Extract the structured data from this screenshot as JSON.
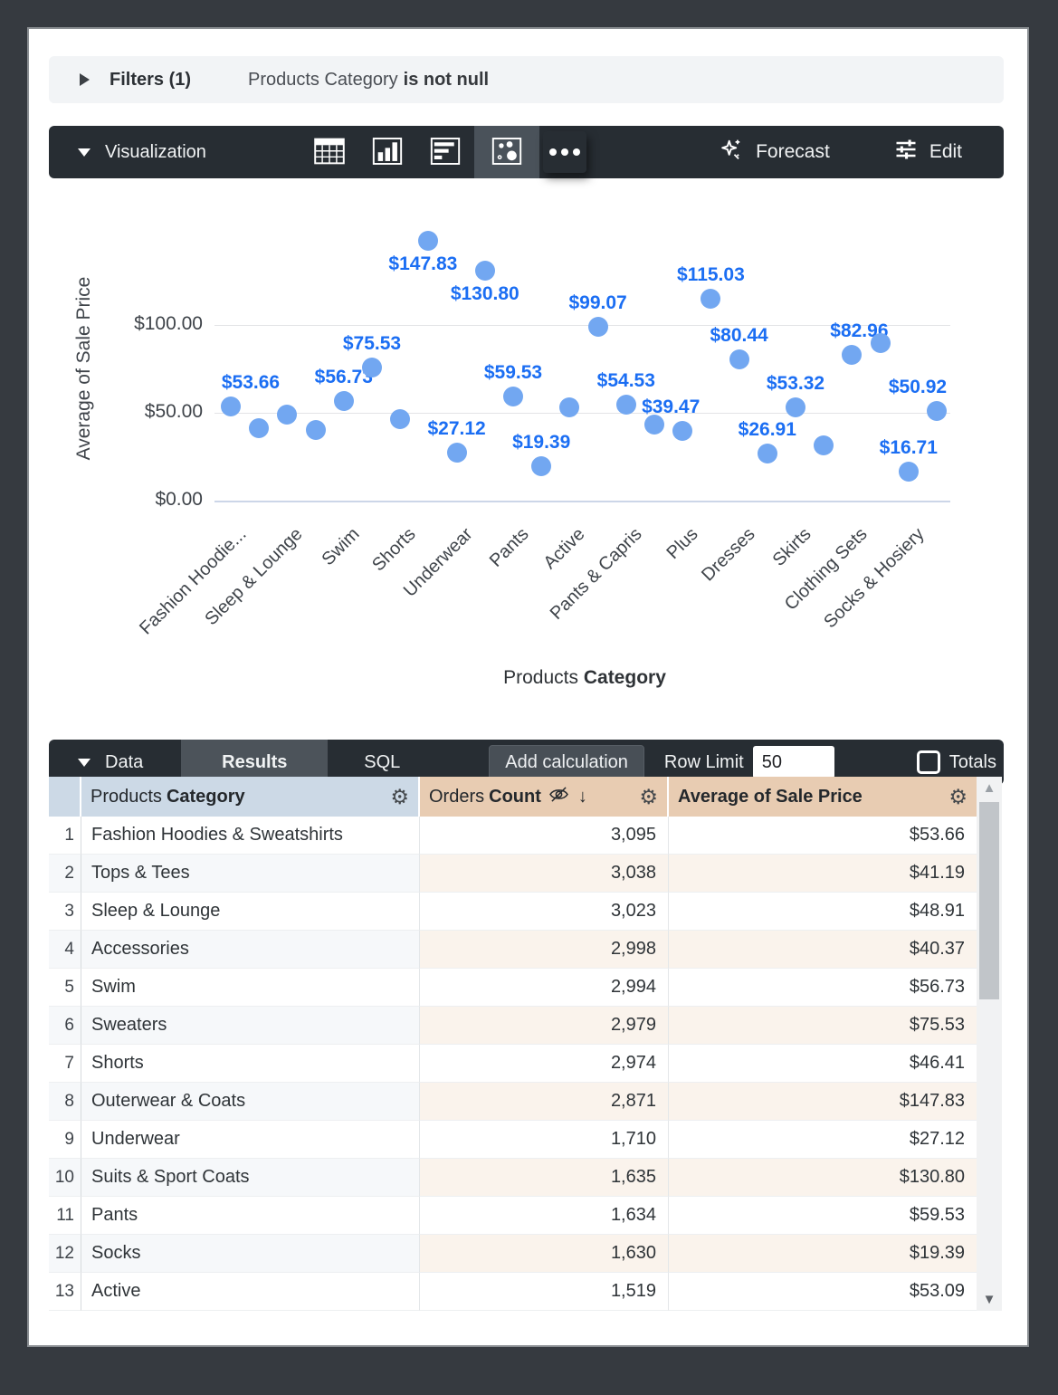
{
  "filters": {
    "label": "Filters (1)",
    "field": "Products Category",
    "condition": "is not null"
  },
  "viz_toolbar": {
    "label": "Visualization",
    "icons": [
      "table-viz-icon",
      "column-chart-viz-icon",
      "bar-chart-viz-icon",
      "scatter-viz-icon",
      "more-options-icon"
    ],
    "selected_viz": "scatter",
    "forecast_label": "Forecast",
    "edit_label": "Edit"
  },
  "chart_data": {
    "type": "scatter",
    "ylabel": "Average of Sale Price",
    "xlabel": {
      "prefix": "Products",
      "bold": "Category"
    },
    "ylim": [
      0,
      165
    ],
    "grid": true,
    "point_color": "#72a7f1",
    "label_color": "#1b6ef3",
    "y_ticks": [
      {
        "value": 0,
        "label": "$0.00"
      },
      {
        "value": 50,
        "label": "$50.00"
      },
      {
        "value": 100,
        "label": "$100.00"
      }
    ],
    "x_tick_labels": [
      "Fashion Hoodie...",
      "Sleep & Lounge",
      "Swim",
      "Shorts",
      "Underwear",
      "Pants",
      "Active",
      "Pants & Capris",
      "Plus",
      "Dresses",
      "Skirts",
      "Clothing Sets",
      "Socks & Hosiery"
    ],
    "points": [
      {
        "category": "Fashion Hoodies & Sweatshirts",
        "value": 53.66,
        "label": "$53.66"
      },
      {
        "category": "Tops & Tees",
        "value": 41.19,
        "label": null
      },
      {
        "category": "Sleep & Lounge",
        "value": 48.91,
        "label": null
      },
      {
        "category": "Accessories",
        "value": 40.37,
        "label": null
      },
      {
        "category": "Swim",
        "value": 56.73,
        "label": "$56.73"
      },
      {
        "category": "Sweaters",
        "value": 75.53,
        "label": "$75.53"
      },
      {
        "category": "Shorts",
        "value": 46.41,
        "label": null
      },
      {
        "category": "Outerwear & Coats",
        "value": 147.83,
        "label": "$147.83"
      },
      {
        "category": "Underwear",
        "value": 27.12,
        "label": "$27.12"
      },
      {
        "category": "Suits & Sport Coats",
        "value": 130.8,
        "label": "$130.80"
      },
      {
        "category": "Pants",
        "value": 59.53,
        "label": "$59.53"
      },
      {
        "category": "Socks",
        "value": 19.39,
        "label": "$19.39"
      },
      {
        "category": "Active",
        "value": 53.09,
        "label": null
      },
      {
        "category": null,
        "value": 99.07,
        "label": "$99.07"
      },
      {
        "category": "Pants & Capris",
        "value": 54.53,
        "label": "$54.53"
      },
      {
        "category": null,
        "value": 43.5,
        "label": null
      },
      {
        "category": "Plus",
        "value": 39.47,
        "label": "$39.47"
      },
      {
        "category": null,
        "value": 115.03,
        "label": "$115.03"
      },
      {
        "category": "Dresses",
        "value": 80.44,
        "label": "$80.44"
      },
      {
        "category": null,
        "value": 26.91,
        "label": "$26.91"
      },
      {
        "category": "Skirts",
        "value": 53.32,
        "label": "$53.32"
      },
      {
        "category": null,
        "value": 31.4,
        "label": null
      },
      {
        "category": "Clothing Sets",
        "value": 82.96,
        "label": "$82.96"
      },
      {
        "category": null,
        "value": 89.7,
        "label": null
      },
      {
        "category": "Socks & Hosiery",
        "value": 16.71,
        "label": "$16.71"
      },
      {
        "category": null,
        "value": 50.92,
        "label": "$50.92"
      }
    ]
  },
  "data_toolbar": {
    "label": "Data",
    "tabs": [
      "Results",
      "SQL"
    ],
    "active_tab": "Results",
    "add_calculation_label": "Add calculation",
    "row_limit_label": "Row Limit",
    "row_limit_value": "50",
    "totals_label": "Totals"
  },
  "table": {
    "columns": [
      {
        "view": "Products",
        "field": "Category",
        "type": "dimension"
      },
      {
        "view": "Orders",
        "field": "Count",
        "type": "measure",
        "sorted": "desc",
        "hidden_icon": true
      },
      {
        "view": "",
        "field": "Average of Sale Price",
        "type": "measure"
      }
    ],
    "rows": [
      {
        "n": 1,
        "category": "Fashion Hoodies & Sweatshirts",
        "count": "3,095",
        "price": "$53.66"
      },
      {
        "n": 2,
        "category": "Tops & Tees",
        "count": "3,038",
        "price": "$41.19"
      },
      {
        "n": 3,
        "category": "Sleep & Lounge",
        "count": "3,023",
        "price": "$48.91"
      },
      {
        "n": 4,
        "category": "Accessories",
        "count": "2,998",
        "price": "$40.37"
      },
      {
        "n": 5,
        "category": "Swim",
        "count": "2,994",
        "price": "$56.73"
      },
      {
        "n": 6,
        "category": "Sweaters",
        "count": "2,979",
        "price": "$75.53"
      },
      {
        "n": 7,
        "category": "Shorts",
        "count": "2,974",
        "price": "$46.41"
      },
      {
        "n": 8,
        "category": "Outerwear & Coats",
        "count": "2,871",
        "price": "$147.83"
      },
      {
        "n": 9,
        "category": "Underwear",
        "count": "1,710",
        "price": "$27.12"
      },
      {
        "n": 10,
        "category": "Suits & Sport Coats",
        "count": "1,635",
        "price": "$130.80"
      },
      {
        "n": 11,
        "category": "Pants",
        "count": "1,634",
        "price": "$59.53"
      },
      {
        "n": 12,
        "category": "Socks",
        "count": "1,630",
        "price": "$19.39"
      },
      {
        "n": 13,
        "category": "Active",
        "count": "1,519",
        "price": "$53.09"
      }
    ]
  }
}
